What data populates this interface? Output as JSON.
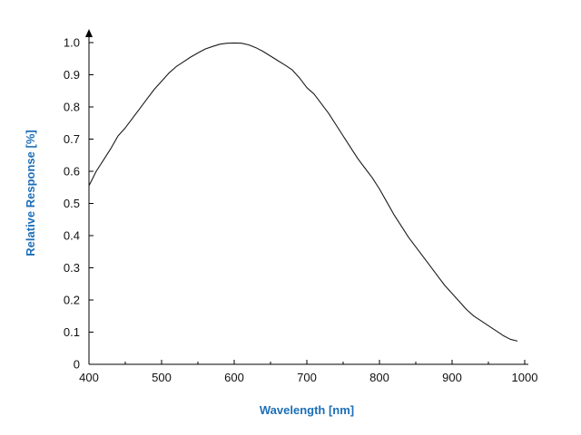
{
  "chart_data": {
    "type": "line",
    "title": "",
    "xlabel": "Wavelength [nm]",
    "ylabel": "Relative Response [%]",
    "xlim": [
      400,
      1000
    ],
    "ylim": [
      0,
      1.0
    ],
    "x_ticks": [
      400,
      500,
      600,
      700,
      800,
      900,
      1000
    ],
    "x_tick_labels": [
      "400",
      "500",
      "600",
      "700",
      "800",
      "900",
      "1000"
    ],
    "y_ticks": [
      0,
      0.1,
      0.2,
      0.3,
      0.4,
      0.5,
      0.6,
      0.7,
      0.8,
      0.9,
      1.0
    ],
    "y_tick_labels": [
      "0",
      "0.1",
      "0.2",
      "0.3",
      "0.4",
      "0.5",
      "0.6",
      "0.7",
      "0.8",
      "0.9",
      "1.0"
    ],
    "grid": false,
    "colors": {
      "axis": "#000000",
      "line": "#1a1a1a",
      "axis_title": "#1d6fb8"
    },
    "series": [
      {
        "x": [
          400,
          410,
          420,
          430,
          440,
          450,
          460,
          470,
          480,
          490,
          500,
          510,
          520,
          530,
          540,
          550,
          560,
          570,
          580,
          590,
          600,
          610,
          620,
          630,
          640,
          650,
          660,
          670,
          680,
          690,
          700,
          710,
          720,
          730,
          740,
          750,
          760,
          770,
          780,
          790,
          800,
          810,
          820,
          830,
          840,
          850,
          860,
          870,
          880,
          890,
          900,
          910,
          920,
          930,
          940,
          950,
          960,
          970,
          980,
          990
        ],
        "y": [
          0.555,
          0.6,
          0.635,
          0.67,
          0.71,
          0.735,
          0.765,
          0.795,
          0.825,
          0.855,
          0.88,
          0.905,
          0.925,
          0.94,
          0.955,
          0.968,
          0.98,
          0.988,
          0.995,
          0.998,
          0.999,
          0.998,
          0.993,
          0.984,
          0.972,
          0.958,
          0.944,
          0.93,
          0.915,
          0.89,
          0.86,
          0.84,
          0.81,
          0.78,
          0.745,
          0.71,
          0.675,
          0.64,
          0.61,
          0.58,
          0.545,
          0.505,
          0.465,
          0.43,
          0.395,
          0.365,
          0.335,
          0.305,
          0.275,
          0.245,
          0.22,
          0.195,
          0.17,
          0.15,
          0.135,
          0.12,
          0.105,
          0.09,
          0.078,
          0.072
        ]
      }
    ]
  }
}
